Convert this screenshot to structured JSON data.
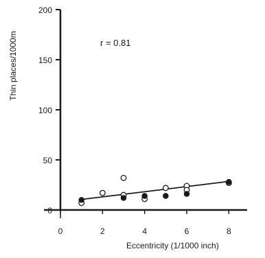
{
  "chart_data": {
    "type": "scatter",
    "title": "",
    "xlabel": "Eccentricity  (1/1000 inch)",
    "ylabel": "Thin places/1000m",
    "xlim": [
      0,
      9
    ],
    "ylim": [
      0,
      200
    ],
    "x_ticks": [
      0,
      2,
      4,
      6,
      8
    ],
    "y_ticks": [
      0,
      50,
      100,
      150,
      200
    ],
    "grid": false,
    "legend": "none",
    "annotation": "r = 0.81",
    "series": [
      {
        "marker": "open-circle",
        "points": [
          [
            1,
            7
          ],
          [
            2,
            17
          ],
          [
            3,
            32
          ],
          [
            3,
            15
          ],
          [
            4,
            11
          ],
          [
            5,
            22
          ],
          [
            6,
            24
          ],
          [
            6,
            20
          ],
          [
            8,
            27
          ]
        ]
      },
      {
        "marker": "filled-circle",
        "points": [
          [
            1,
            10
          ],
          [
            3,
            12
          ],
          [
            4,
            14
          ],
          [
            5,
            14
          ],
          [
            6,
            16
          ],
          [
            8,
            28
          ]
        ]
      }
    ],
    "trendline": {
      "x": [
        1,
        8
      ],
      "y": [
        10.5,
        28.5
      ]
    },
    "colors": {
      "ink": "#1a1a1a",
      "background": "#ffffff"
    }
  }
}
